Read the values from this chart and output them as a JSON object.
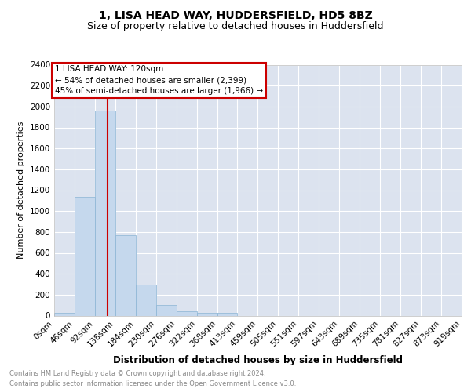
{
  "title1": "1, LISA HEAD WAY, HUDDERSFIELD, HD5 8BZ",
  "title2": "Size of property relative to detached houses in Huddersfield",
  "xlabel": "Distribution of detached houses by size in Huddersfield",
  "ylabel": "Number of detached properties",
  "footer1": "Contains HM Land Registry data © Crown copyright and database right 2024.",
  "footer2": "Contains public sector information licensed under the Open Government Licence v3.0.",
  "bar_values": [
    30,
    1140,
    1960,
    770,
    295,
    100,
    45,
    30,
    25,
    0,
    0,
    0,
    0,
    0,
    0,
    0,
    0,
    0,
    0,
    0
  ],
  "bin_edges": [
    0,
    46,
    92,
    138,
    184,
    230,
    276,
    322,
    368,
    413,
    459,
    505,
    551,
    597,
    643,
    689,
    735,
    781,
    827,
    873,
    919
  ],
  "x_labels": [
    "0sqm",
    "46sqm",
    "92sqm",
    "138sqm",
    "184sqm",
    "230sqm",
    "276sqm",
    "322sqm",
    "368sqm",
    "413sqm",
    "459sqm",
    "505sqm",
    "551sqm",
    "597sqm",
    "643sqm",
    "689sqm",
    "735sqm",
    "781sqm",
    "827sqm",
    "873sqm",
    "919sqm"
  ],
  "bar_color": "#c5d8ed",
  "bar_edge_color": "#8ab4d4",
  "red_line_x": 120,
  "red_line_color": "#cc0000",
  "annotation_text": "1 LISA HEAD WAY: 120sqm\n← 54% of detached houses are smaller (2,399)\n45% of semi-detached houses are larger (1,966) →",
  "annotation_box_color": "#cc0000",
  "annotation_box_fill": "#ffffff",
  "ylim": [
    0,
    2400
  ],
  "yticks": [
    0,
    200,
    400,
    600,
    800,
    1000,
    1200,
    1400,
    1600,
    1800,
    2000,
    2200,
    2400
  ],
  "plot_bg_color": "#dce3ef",
  "grid_color": "#ffffff",
  "title1_fontsize": 10,
  "title2_fontsize": 9,
  "xlabel_fontsize": 8.5,
  "ylabel_fontsize": 8,
  "tick_fontsize": 7.5,
  "annotation_fontsize": 7.5,
  "footer_fontsize": 6,
  "footer_color": "#888888"
}
